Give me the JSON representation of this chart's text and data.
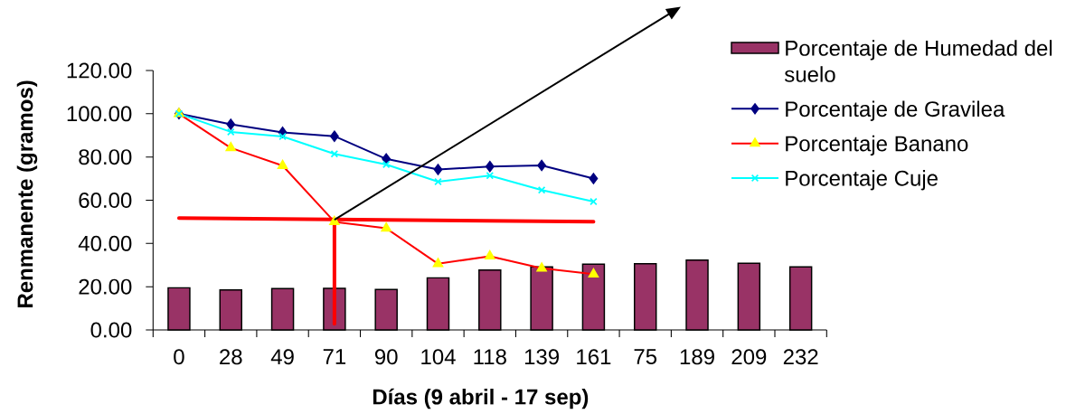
{
  "chart_data": {
    "type": "bar",
    "categories": [
      "0",
      "28",
      "49",
      "71",
      "90",
      "104",
      "118",
      "139",
      "161",
      "75",
      "189",
      "209",
      "232"
    ],
    "series": [
      {
        "name": "Porcentaje de Humedad del suelo",
        "color": "#993366",
        "values": [
          19.5,
          18.5,
          19.1,
          19.2,
          18.7,
          24.1,
          27.7,
          29.2,
          30.4,
          30.6,
          32.3,
          30.8,
          29.2
        ]
      },
      {
        "name": "Porcentaje de Gravilea",
        "type": "line",
        "color": "#000080",
        "marker": "diamond",
        "values": [
          100,
          95.1,
          91.4,
          89.6,
          79.1,
          74.2,
          75.6,
          76.1,
          70.0,
          null,
          null,
          null,
          null
        ]
      },
      {
        "name": "Porcentaje Banano",
        "type": "line",
        "color": "#ff0000",
        "colors": [
          "#ffff00",
          "#ffff00",
          "#ffff00",
          "#ffff00",
          "#ffff00",
          "#ffff00",
          "#ffff00",
          "#ffff00",
          "#ffff00",
          null,
          null,
          null,
          null
        ],
        "marker": "triangle",
        "values": [
          100,
          84.2,
          76.0,
          50.0,
          47.0,
          30.6,
          34.1,
          28.5,
          25.8,
          null,
          null,
          null,
          null
        ]
      },
      {
        "name": "Porcentaje Cuje",
        "type": "line",
        "color": "#00ffff",
        "marker": "cross",
        "values": [
          100,
          91.6,
          89.5,
          81.4,
          76.5,
          68.6,
          71.4,
          64.7,
          59.4,
          null,
          null,
          null,
          null
        ]
      },
      {
        "type": "line",
        "color": "#ff0000",
        "marker": "none",
        "x": [
          "0",
          "161"
        ],
        "values": [
          51.7,
          50.1
        ]
      },
      {
        "type": "line",
        "color": "#ff0000",
        "marker": "none",
        "x": [
          "71",
          "71"
        ],
        "values": [
          51.0,
          2.8
        ]
      }
    ],
    "ylim": [
      0,
      120
    ],
    "yticks": [
      {
        "value": 0,
        "label": "0.00"
      },
      {
        "value": 20,
        "label": "20.00"
      },
      {
        "value": 40,
        "label": "40.00"
      },
      {
        "value": 60,
        "label": "60.00"
      },
      {
        "value": 80,
        "label": "80.00"
      },
      {
        "value": 100,
        "label": "100.00"
      },
      {
        "value": 120,
        "label": "120.00"
      }
    ],
    "xlabel": "Días (9 abril - 17 sep)",
    "ylabel": "Renmanente (gramos)",
    "legend": "top right"
  }
}
